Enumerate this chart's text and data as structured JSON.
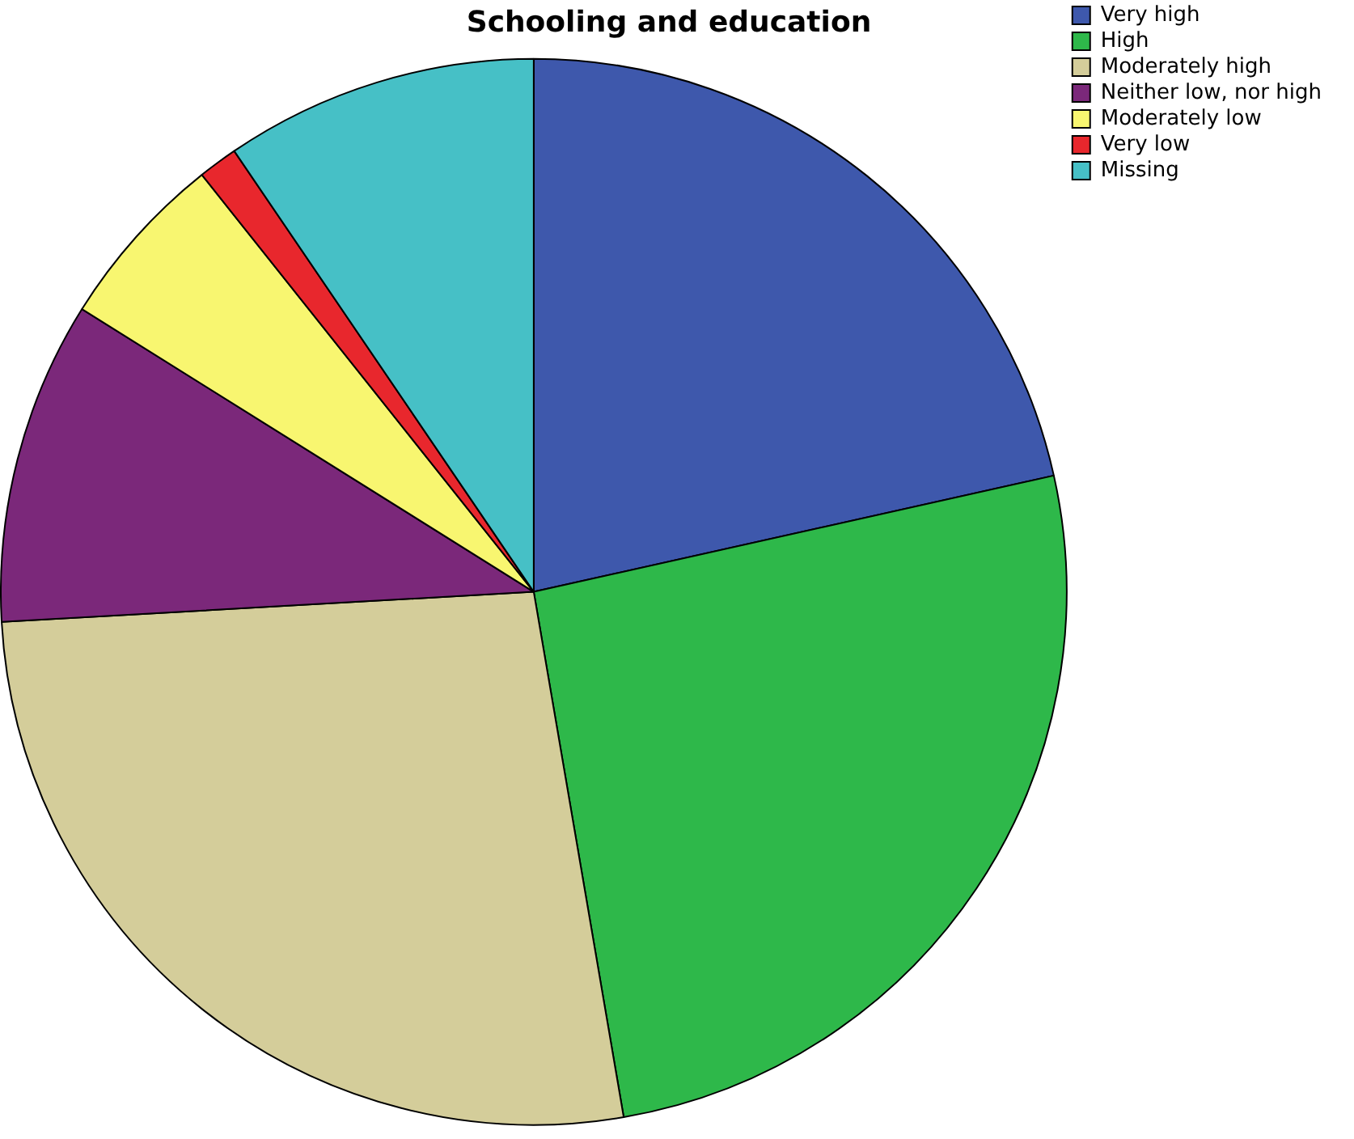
{
  "chart_data": {
    "type": "pie",
    "title": "Schooling and education",
    "categories": [
      "Very high",
      "High",
      "Moderately high",
      "Neither low, nor high",
      "Moderately low",
      "Very low",
      "Missing"
    ],
    "values": [
      21.5,
      25.8,
      26.8,
      9.8,
      5.4,
      1.2,
      9.5
    ],
    "colors": [
      "#3e58ac",
      "#2eb84a",
      "#d4cd9a",
      "#7b287a",
      "#f8f670",
      "#e8272d",
      "#46c0c6"
    ],
    "legend": "top right"
  }
}
